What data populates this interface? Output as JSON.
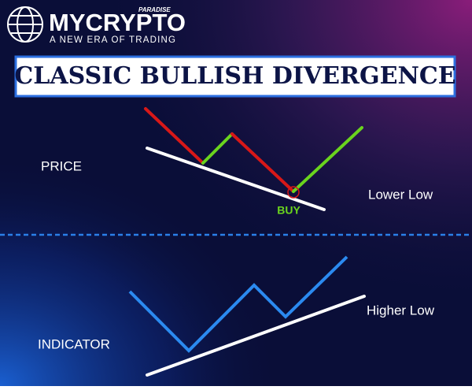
{
  "header": {
    "brand": "MYCRYPTO",
    "brand_sub": "PARADISE",
    "tagline": "A NEW ERA OF TRADING"
  },
  "title": "CLASSIC BULLISH DIVERGENCE",
  "labels": {
    "price": "PRICE",
    "buy": "BUY",
    "lower_low": "Lower Low",
    "indicator": "INDICATOR",
    "higher_low": "Higher Low"
  }
}
